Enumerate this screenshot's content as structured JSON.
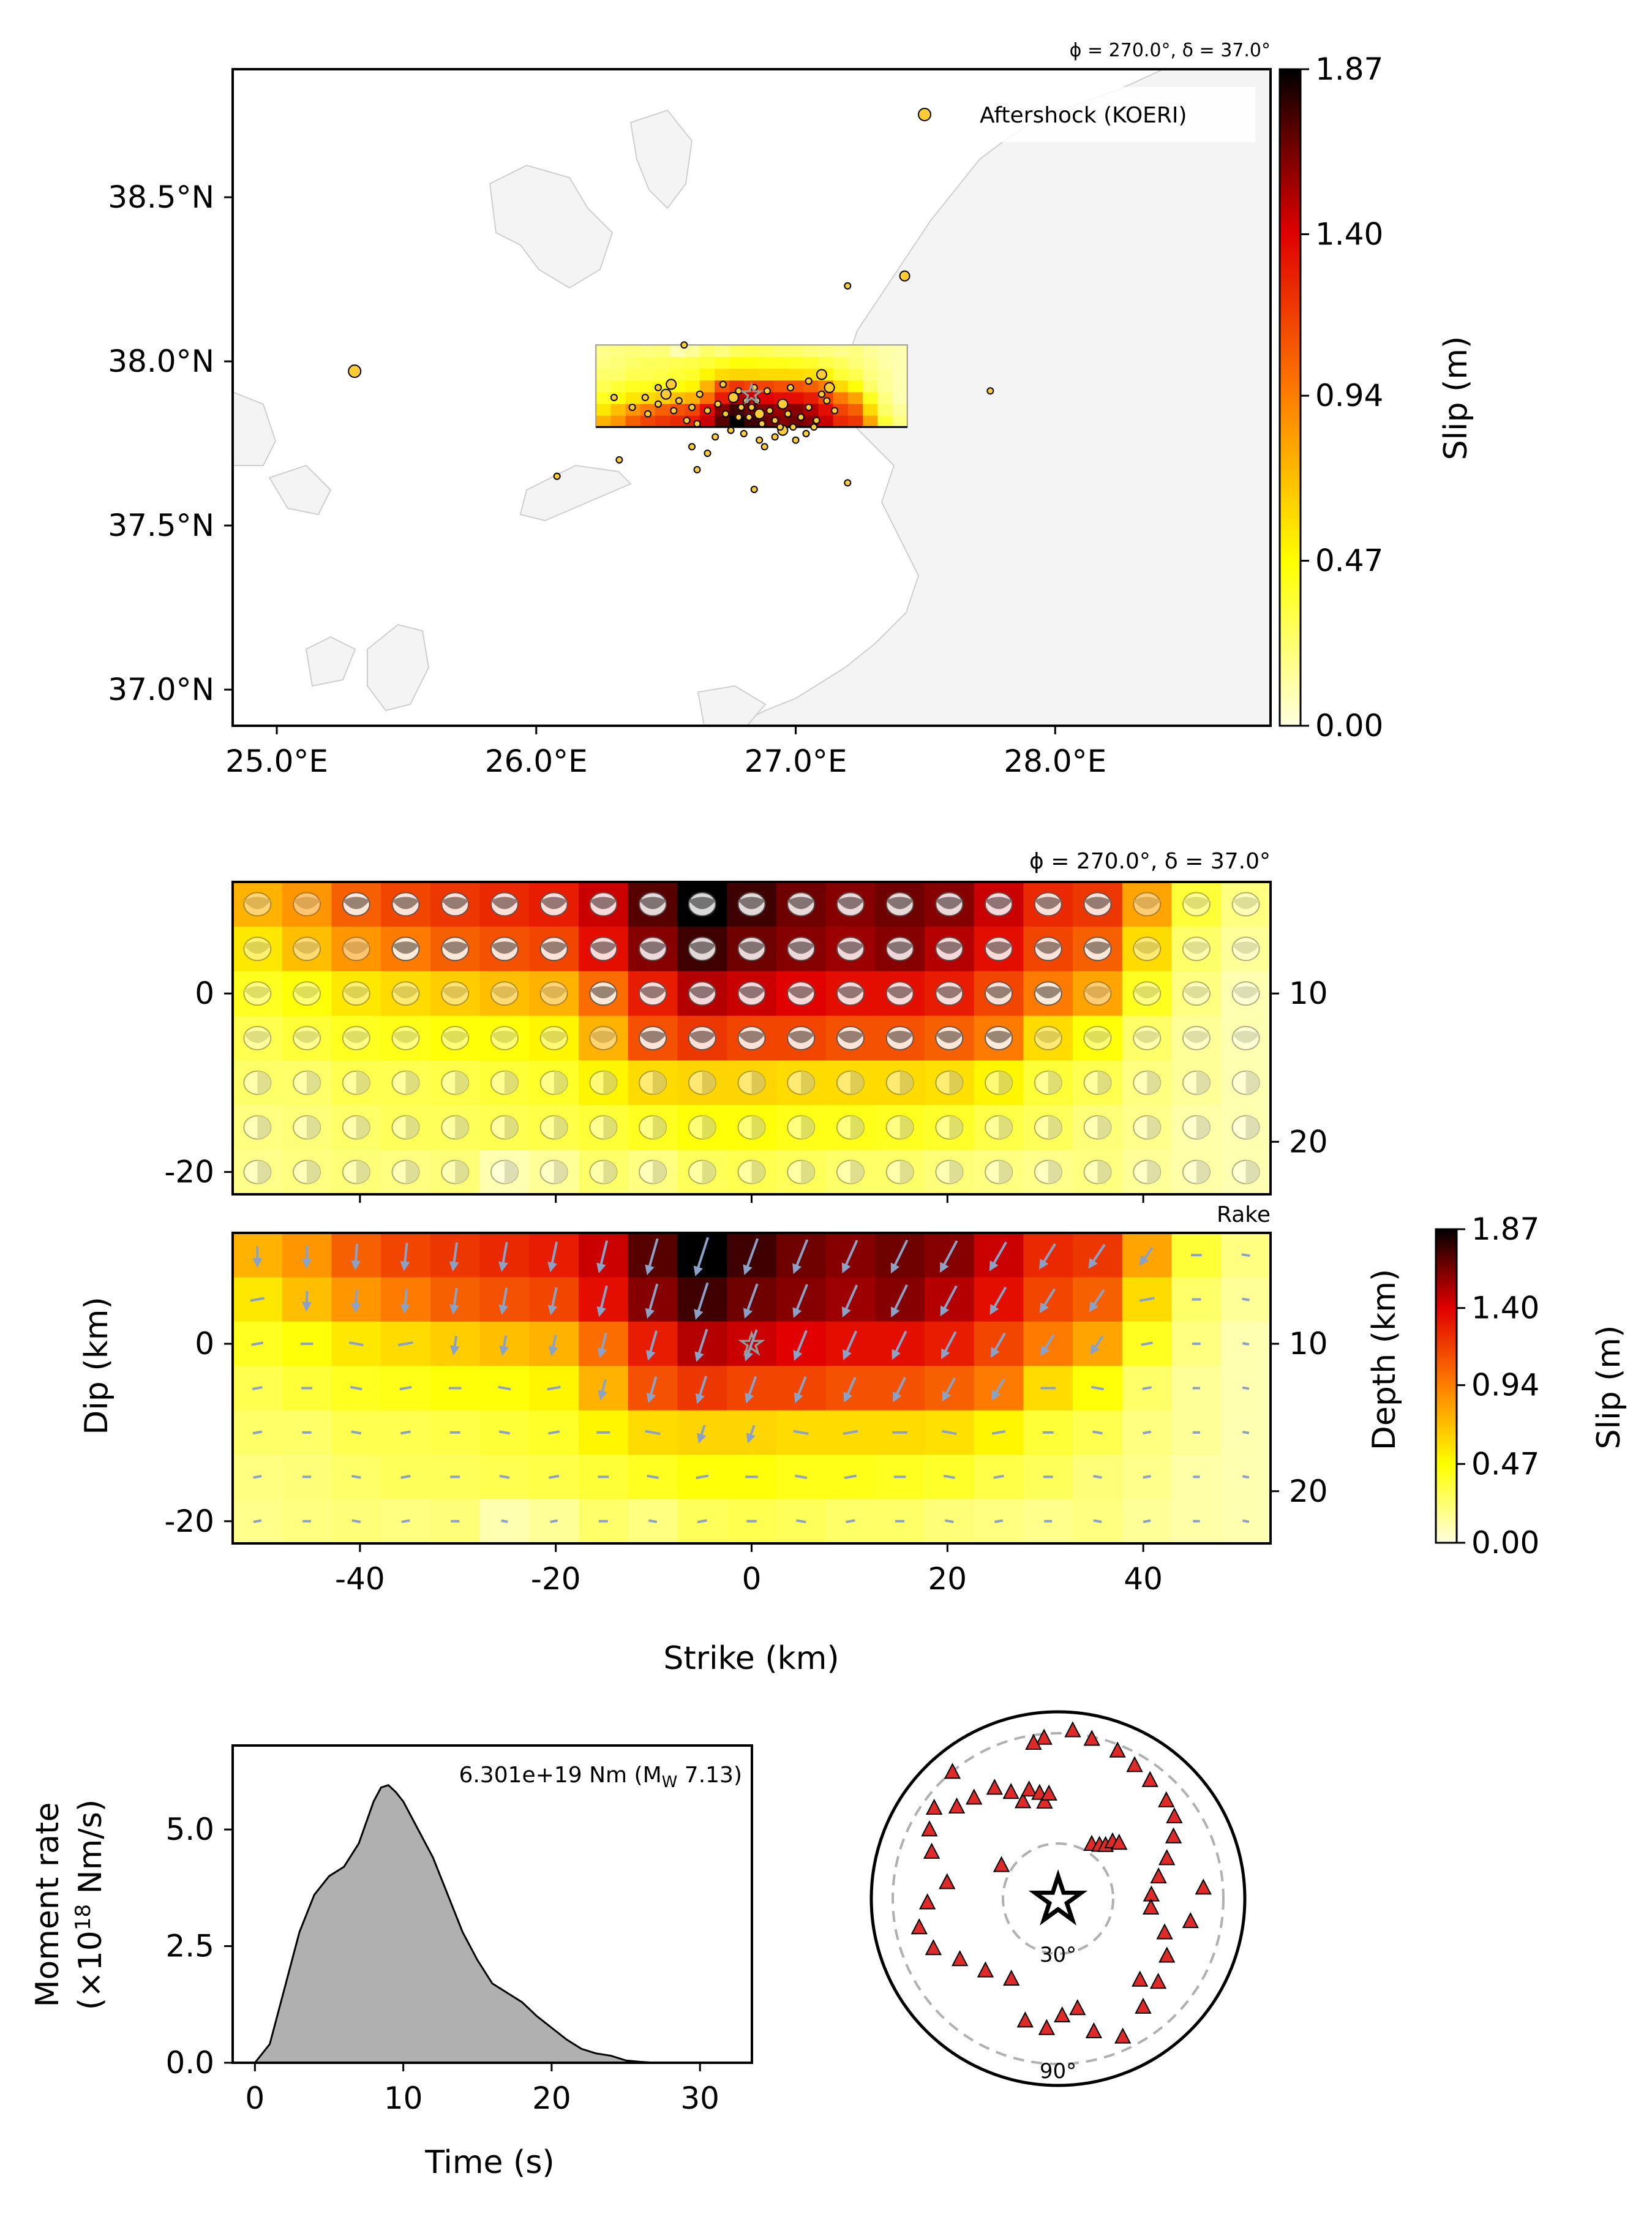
{
  "colors": {
    "slip_low": "#ffffe0",
    "slip_mid_yellow": "#ffff00",
    "slip_mid_orange": "#ff7f00",
    "slip_mid_red": "#e00000",
    "slip_high": "#000000",
    "land": "#f4f4f4",
    "aftershock_fill": "#ffcc33",
    "rake_arrow": "#8aa2c8",
    "station_fill": "#e02a2a",
    "stf_fill": "#b0b0b0",
    "ring": "#b0b0b0"
  },
  "chart_data": [
    {
      "type": "scatter",
      "id": "map",
      "header": "ϕ = 270.0°, δ = 37.0°",
      "legend": {
        "label": "Aftershock (KOERI)",
        "position": "top-right"
      },
      "x_ticks": [
        "25.0°E",
        "26.0°E",
        "27.0°E",
        "28.0°E"
      ],
      "y_ticks": [
        "37.0°N",
        "37.5°N",
        "38.0°N",
        "38.5°N"
      ],
      "xlim": [
        24.83,
        28.83
      ],
      "ylim": [
        36.89,
        38.89
      ],
      "fault_box": {
        "lon": [
          26.23,
          27.43
        ],
        "lat": [
          37.8,
          38.05
        ]
      },
      "hypocenter": {
        "lon": 26.83,
        "lat": 37.9
      },
      "aftershocks": [
        [
          25.3,
          37.97
        ],
        [
          26.08,
          37.65
        ],
        [
          26.32,
          37.7
        ],
        [
          26.62,
          37.67
        ],
        [
          26.84,
          37.61
        ],
        [
          27.2,
          37.63
        ],
        [
          27.75,
          37.91
        ],
        [
          27.42,
          38.26
        ],
        [
          27.2,
          38.23
        ],
        [
          26.57,
          38.05
        ],
        [
          26.3,
          37.89
        ],
        [
          26.37,
          37.86
        ],
        [
          26.43,
          37.84
        ],
        [
          26.47,
          37.87
        ],
        [
          26.5,
          37.9
        ],
        [
          26.55,
          37.88
        ],
        [
          26.6,
          37.86
        ],
        [
          26.63,
          37.9
        ],
        [
          26.66,
          37.85
        ],
        [
          26.7,
          37.87
        ],
        [
          26.73,
          37.84
        ],
        [
          26.76,
          37.89
        ],
        [
          26.79,
          37.86
        ],
        [
          26.82,
          37.83
        ],
        [
          26.85,
          37.88
        ],
        [
          26.87,
          37.81
        ],
        [
          26.9,
          37.85
        ],
        [
          26.92,
          37.82
        ],
        [
          26.95,
          37.87
        ],
        [
          26.97,
          37.84
        ],
        [
          26.99,
          37.8
        ],
        [
          27.02,
          37.83
        ],
        [
          27.05,
          37.86
        ],
        [
          27.08,
          37.82
        ],
        [
          27.1,
          37.9
        ],
        [
          27.13,
          37.92
        ],
        [
          27.15,
          37.85
        ],
        [
          26.8,
          37.78
        ],
        [
          26.86,
          37.76
        ],
        [
          26.75,
          37.79
        ],
        [
          26.88,
          37.74
        ],
        [
          26.92,
          37.77
        ],
        [
          26.95,
          37.79
        ],
        [
          26.69,
          37.77
        ],
        [
          26.62,
          37.81
        ],
        [
          26.58,
          37.82
        ],
        [
          26.53,
          37.85
        ],
        [
          26.42,
          37.89
        ],
        [
          26.47,
          37.92
        ],
        [
          26.52,
          37.93
        ],
        [
          26.72,
          37.93
        ],
        [
          26.78,
          37.91
        ],
        [
          26.84,
          37.92
        ],
        [
          26.89,
          37.91
        ],
        [
          26.98,
          37.92
        ],
        [
          27.05,
          37.94
        ],
        [
          27.1,
          37.96
        ],
        [
          26.6,
          37.74
        ],
        [
          26.66,
          37.72
        ],
        [
          27.0,
          37.76
        ],
        [
          27.04,
          37.78
        ],
        [
          26.81,
          37.88
        ],
        [
          26.83,
          37.86
        ],
        [
          26.86,
          37.84
        ],
        [
          26.78,
          37.83
        ],
        [
          26.94,
          37.8
        ],
        [
          27.07,
          37.8
        ],
        [
          27.12,
          37.88
        ]
      ]
    },
    {
      "type": "heatmap",
      "id": "slip_mechanisms",
      "header": "ϕ = 270.0°, δ = 37.0°",
      "x_ticks": [
        "-40",
        "-20",
        "0",
        "20",
        "40"
      ],
      "y_ticks": [
        "-20",
        "0"
      ],
      "y2_ticks": [
        "10",
        "20"
      ],
      "xlim": [
        -53,
        53
      ],
      "ylim": [
        -22.5,
        12.5
      ],
      "columns": 21,
      "rows": 7,
      "slip_m": [
        [
          0.75,
          0.85,
          1.05,
          1.15,
          1.2,
          1.25,
          1.3,
          1.45,
          1.7,
          1.87,
          1.75,
          1.65,
          1.6,
          1.65,
          1.6,
          1.45,
          1.25,
          1.2,
          0.8,
          0.35,
          0.2
        ],
        [
          0.55,
          0.7,
          0.85,
          0.95,
          1.05,
          1.1,
          1.15,
          1.35,
          1.6,
          1.75,
          1.65,
          1.6,
          1.55,
          1.6,
          1.5,
          1.35,
          1.15,
          1.05,
          0.6,
          0.25,
          0.15
        ],
        [
          0.4,
          0.45,
          0.55,
          0.6,
          0.65,
          0.7,
          0.75,
          1.0,
          1.3,
          1.5,
          1.45,
          1.4,
          1.35,
          1.35,
          1.3,
          1.15,
          0.95,
          0.8,
          0.4,
          0.2,
          0.1
        ],
        [
          0.3,
          0.35,
          0.4,
          0.42,
          0.45,
          0.45,
          0.5,
          0.75,
          1.1,
          1.2,
          1.15,
          1.15,
          1.1,
          1.1,
          1.05,
          0.95,
          0.6,
          0.45,
          0.25,
          0.15,
          0.1
        ],
        [
          0.25,
          0.25,
          0.3,
          0.3,
          0.32,
          0.35,
          0.38,
          0.5,
          0.6,
          0.62,
          0.62,
          0.6,
          0.6,
          0.6,
          0.58,
          0.5,
          0.35,
          0.3,
          0.2,
          0.15,
          0.1
        ],
        [
          0.2,
          0.22,
          0.25,
          0.28,
          0.28,
          0.3,
          0.32,
          0.35,
          0.4,
          0.45,
          0.45,
          0.42,
          0.42,
          0.4,
          0.38,
          0.32,
          0.28,
          0.22,
          0.18,
          0.12,
          0.1
        ],
        [
          0.18,
          0.2,
          0.22,
          0.2,
          0.22,
          0.1,
          0.15,
          0.25,
          0.2,
          0.28,
          0.3,
          0.28,
          0.25,
          0.25,
          0.22,
          0.2,
          0.18,
          0.2,
          0.15,
          0.12,
          0.1
        ]
      ]
    },
    {
      "type": "heatmap",
      "id": "slip_rake",
      "corner_label": "Rake",
      "hypocenter": {
        "strike": 0,
        "dip": 0
      },
      "x_ticks": [
        "-40",
        "-20",
        "0",
        "20",
        "40"
      ],
      "y_ticks": [
        "-20",
        "0"
      ],
      "y2_ticks": [
        "10",
        "20"
      ],
      "xlabel": "Strike (km)",
      "ylabel": "Dip (km)",
      "y2label": "Depth (km)",
      "colorbar": {
        "label": "Slip (m)",
        "ticks": [
          "0.00",
          "0.47",
          "0.94",
          "1.40",
          "1.87"
        ],
        "range": [
          0,
          1.87
        ]
      }
    },
    {
      "type": "area",
      "id": "moment_rate",
      "annotation": "6.301e+19 Nm (M",
      "annotation_sub": "W",
      "annotation_end": " 7.13)",
      "xlabel": "Time (s)",
      "ylabel_1": "Moment rate",
      "ylabel_2": "(×10",
      "ylabel_sup": "18",
      "ylabel_end": " Nm/s)",
      "x_ticks": [
        "0",
        "10",
        "20",
        "30"
      ],
      "y_ticks": [
        "0.0",
        "2.5",
        "5.0"
      ],
      "xlim": [
        -1.5,
        33.5
      ],
      "ylim": [
        0,
        6.8
      ],
      "x": [
        0,
        1,
        2,
        3,
        4,
        5,
        6,
        7,
        8,
        8.5,
        9,
        9.5,
        10,
        11,
        12,
        13,
        14,
        15,
        16,
        17,
        18,
        19,
        20,
        21,
        22,
        23,
        24,
        25,
        26,
        27,
        33
      ],
      "y": [
        0,
        0.4,
        1.6,
        2.8,
        3.6,
        4.0,
        4.2,
        4.7,
        5.6,
        5.9,
        5.95,
        5.8,
        5.6,
        5.0,
        4.4,
        3.6,
        2.8,
        2.2,
        1.7,
        1.5,
        1.3,
        1.0,
        0.75,
        0.5,
        0.3,
        0.2,
        0.15,
        0.05,
        0.02,
        0,
        0
      ]
    },
    {
      "type": "scatter",
      "id": "station_map",
      "ring_labels": [
        "30°",
        "90°"
      ],
      "stations": [
        [
          -5,
          0.86
        ],
        [
          -9,
          0.84
        ],
        [
          5,
          0.9
        ],
        [
          12,
          0.87
        ],
        [
          22,
          0.85
        ],
        [
          30,
          0.82
        ],
        [
          38,
          0.8
        ],
        [
          48,
          0.78
        ],
        [
          55,
          0.76
        ],
        [
          62,
          0.7
        ],
        [
          70,
          0.62
        ],
        [
          78,
          0.55
        ],
        [
          88,
          0.5
        ],
        [
          96,
          0.5
        ],
        [
          108,
          0.6
        ],
        [
          118,
          0.66
        ],
        [
          130,
          0.7
        ],
        [
          142,
          0.74
        ],
        [
          155,
          0.82
        ],
        [
          165,
          0.74
        ],
        [
          170,
          0.6
        ],
        [
          178,
          0.63
        ],
        [
          185,
          0.7
        ],
        [
          195,
          0.68
        ],
        [
          210,
          0.5
        ],
        [
          225,
          0.55
        ],
        [
          238,
          0.62
        ],
        [
          248,
          0.72
        ],
        [
          258,
          0.76
        ],
        [
          268,
          0.7
        ],
        [
          278,
          0.6
        ],
        [
          290,
          0.72
        ],
        [
          298,
          0.78
        ],
        [
          306,
          0.82
        ],
        [
          312,
          0.73
        ],
        [
          320,
          0.7
        ],
        [
          330,
          0.68
        ],
        [
          336,
          0.62
        ],
        [
          340,
          0.55
        ],
        [
          345,
          0.6
        ],
        [
          350,
          0.57
        ],
        [
          352,
          0.52
        ],
        [
          355,
          0.56
        ],
        [
          32,
          0.34
        ],
        [
          38,
          0.36
        ],
        [
          42,
          0.38
        ],
        [
          44,
          0.42
        ],
        [
          48,
          0.44
        ],
        [
          300,
          0.35
        ],
        [
          320,
          0.88
        ],
        [
          86,
          0.78
        ],
        [
          100,
          0.72
        ],
        [
          135,
          0.62
        ]
      ]
    }
  ]
}
